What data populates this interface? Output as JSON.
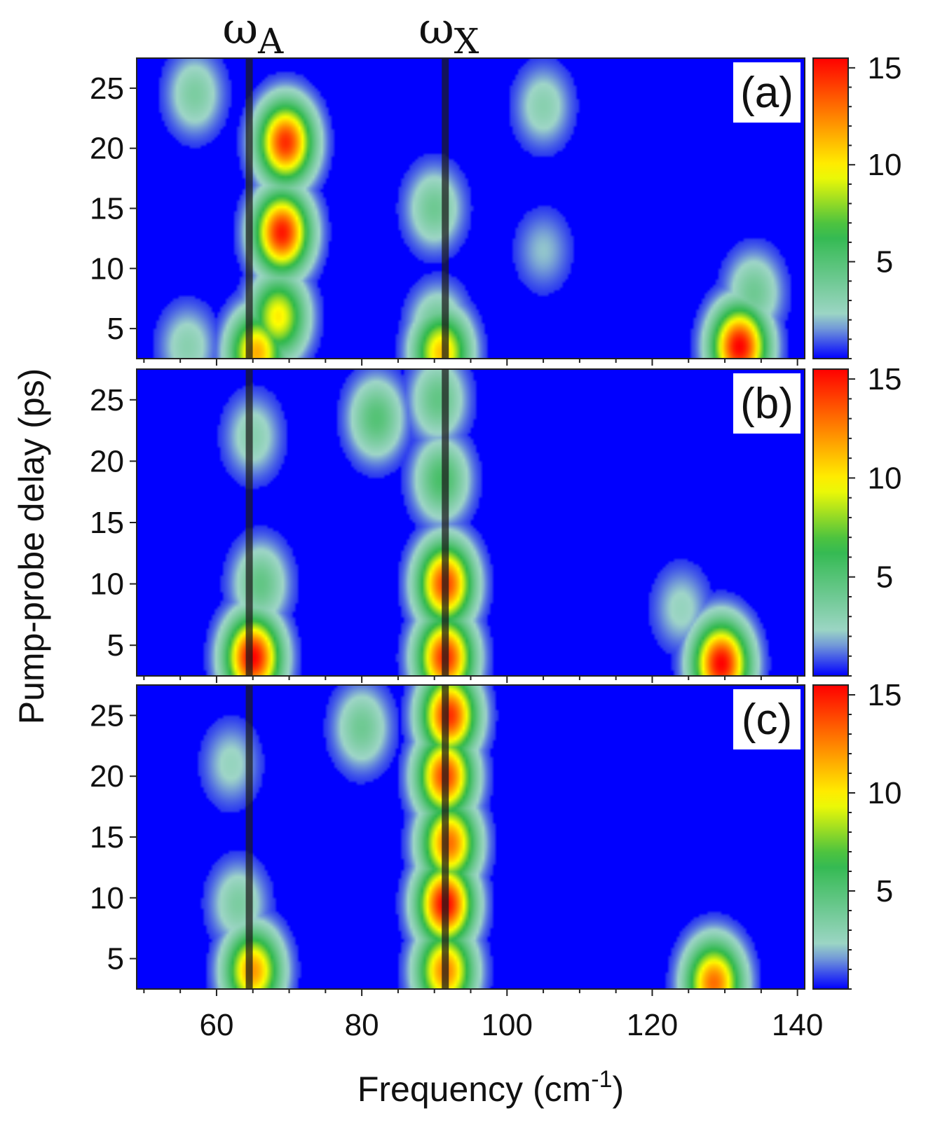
{
  "chart_data": {
    "type": "heatmap",
    "xlabel": "Frequency (cm",
    "xlabel_sup": "-1",
    "xlabel_close": ")",
    "ylabel": "Pump-probe delay (ps)",
    "xlim": [
      49,
      141
    ],
    "ylim": [
      2.5,
      27.5
    ],
    "x_ticks": [
      60,
      80,
      100,
      120,
      140
    ],
    "y_ticks": [
      5,
      10,
      15,
      20,
      25
    ],
    "colorbar": {
      "range": [
        0,
        15.5
      ],
      "ticks": [
        5,
        10,
        15
      ],
      "colormap": [
        "#0000ff",
        "#9fd6c8",
        "#2db84a",
        "#ffff00",
        "#ff7a00",
        "#ff0000"
      ]
    },
    "markers": [
      {
        "name": "ω",
        "sub": "A",
        "x": 64.5
      },
      {
        "name": "ω",
        "sub": "X",
        "x": 91.5
      }
    ],
    "panels": [
      {
        "label": "(a)",
        "peaks": [
          {
            "x": 69.5,
            "y": 20.5,
            "z": 14.5
          },
          {
            "x": 69.0,
            "y": 13.0,
            "z": 15.0
          },
          {
            "x": 68.5,
            "y": 6.0,
            "z": 10.0
          },
          {
            "x": 65.5,
            "y": 3.0,
            "z": 11.5
          },
          {
            "x": 57.0,
            "y": 24.5,
            "z": 3.5
          },
          {
            "x": 56.0,
            "y": 3.5,
            "z": 3.0
          },
          {
            "x": 90.0,
            "y": 15.0,
            "z": 4.0
          },
          {
            "x": 90.5,
            "y": 5.0,
            "z": 4.5
          },
          {
            "x": 91.0,
            "y": 3.0,
            "z": 11.0
          },
          {
            "x": 105.0,
            "y": 23.5,
            "z": 3.0
          },
          {
            "x": 105.0,
            "y": 11.5,
            "z": 2.0
          },
          {
            "x": 132.0,
            "y": 3.5,
            "z": 15.5
          },
          {
            "x": 134.0,
            "y": 8.0,
            "z": 4.0
          }
        ]
      },
      {
        "label": "(b)",
        "peaks": [
          {
            "x": 65.0,
            "y": 4.0,
            "z": 15.5
          },
          {
            "x": 66.0,
            "y": 10.0,
            "z": 4.5
          },
          {
            "x": 65.0,
            "y": 22.0,
            "z": 3.0
          },
          {
            "x": 91.5,
            "y": 10.0,
            "z": 14.0
          },
          {
            "x": 91.5,
            "y": 4.0,
            "z": 14.5
          },
          {
            "x": 91.0,
            "y": 18.5,
            "z": 5.5
          },
          {
            "x": 90.5,
            "y": 25.0,
            "z": 4.5
          },
          {
            "x": 82.0,
            "y": 23.5,
            "z": 5.0
          },
          {
            "x": 129.5,
            "y": 3.5,
            "z": 15.5
          },
          {
            "x": 124.0,
            "y": 8.0,
            "z": 2.5
          }
        ]
      },
      {
        "label": "(c)",
        "peaks": [
          {
            "x": 65.0,
            "y": 4.0,
            "z": 12.0
          },
          {
            "x": 63.0,
            "y": 9.5,
            "z": 3.5
          },
          {
            "x": 62.0,
            "y": 21.0,
            "z": 2.5
          },
          {
            "x": 92.0,
            "y": 25.0,
            "z": 14.5
          },
          {
            "x": 91.5,
            "y": 20.0,
            "z": 14.0
          },
          {
            "x": 92.0,
            "y": 14.5,
            "z": 13.0
          },
          {
            "x": 91.5,
            "y": 9.5,
            "z": 15.5
          },
          {
            "x": 91.5,
            "y": 4.0,
            "z": 12.5
          },
          {
            "x": 80.0,
            "y": 24.0,
            "z": 4.0
          },
          {
            "x": 128.5,
            "y": 3.0,
            "z": 13.0
          }
        ]
      }
    ]
  }
}
